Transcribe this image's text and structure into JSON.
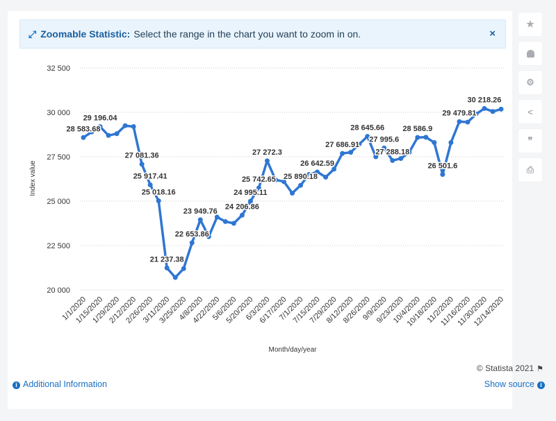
{
  "banner": {
    "icon": "expand-arrows-icon",
    "title": "Zoomable Statistic:",
    "text": "Select the range in the chart you want to zoom in on.",
    "close": "×"
  },
  "footer": {
    "copyright": "© Statista 2021",
    "additional_info": "Additional Information",
    "show_source": "Show source"
  },
  "sidebar": {
    "items": [
      {
        "name": "star-icon",
        "glyph": "★"
      },
      {
        "name": "bell-icon",
        "glyph": "🔔"
      },
      {
        "name": "gear-icon",
        "glyph": "⚙"
      },
      {
        "name": "share-icon",
        "glyph": "<"
      },
      {
        "name": "quote-icon",
        "glyph": "❞"
      },
      {
        "name": "print-icon",
        "glyph": "⎙"
      }
    ]
  },
  "colors": {
    "line": "#2f76d2",
    "grid": "#cccccc",
    "accent": "#1a6fc2"
  },
  "chart_data": {
    "type": "line",
    "xlabel": "Month/day/year",
    "ylabel": "Index value",
    "ylim": [
      20000,
      32500
    ],
    "yticks": [
      20000,
      22500,
      25000,
      27500,
      30000,
      32500
    ],
    "ytick_labels": [
      "20 000",
      "22 500",
      "25 000",
      "27 500",
      "30 000",
      "32 500"
    ],
    "grid": true,
    "categories": [
      "1/1/2020",
      "1/8/2020",
      "1/15/2020",
      "1/22/2020",
      "1/29/2020",
      "2/5/2020",
      "2/12/2020",
      "2/19/2020",
      "2/26/2020",
      "3/4/2020",
      "3/11/2020",
      "3/18/2020",
      "3/25/2020",
      "4/1/2020",
      "4/8/2020",
      "4/15/2020",
      "4/22/2020",
      "4/29/2020",
      "5/6/2020",
      "5/13/2020",
      "5/20/2020",
      "5/27/2020",
      "6/3/2020",
      "6/10/2020",
      "6/17/2020",
      "6/24/2020",
      "7/1/2020",
      "7/8/2020",
      "7/15/2020",
      "7/22/2020",
      "7/29/2020",
      "8/5/2020",
      "8/12/2020",
      "8/19/2020",
      "8/26/2020",
      "9/2/2020",
      "9/9/2020",
      "9/16/2020",
      "9/23/2020",
      "9/30/2020",
      "10/4/2020",
      "10/11/2020",
      "10/18/2020",
      "10/25/2020",
      "11/2/2020",
      "11/9/2020",
      "11/16/2020",
      "11/23/2020",
      "11/30/2020",
      "12/7/2020",
      "12/14/2020"
    ],
    "x_tick_labels": [
      "1/1/2020",
      "1/15/2020",
      "1/29/2020",
      "2/12/2020",
      "2/26/2020",
      "3/11/2020",
      "3/25/2020",
      "4/8/2020",
      "4/22/2020",
      "5/6/2020",
      "5/20/2020",
      "6/3/2020",
      "6/17/2020",
      "7/1/2020",
      "7/15/2020",
      "7/29/2020",
      "8/12/2020",
      "8/26/2020",
      "9/9/2020",
      "9/23/2020",
      "10/4/2020",
      "10/18/2020",
      "11/2/2020",
      "11/16/2020",
      "11/30/2020",
      "12/14/2020"
    ],
    "values": [
      28583.68,
      28900,
      29196.04,
      28700,
      28800,
      29250,
      29200,
      27081.36,
      25917.41,
      25018.16,
      21237.38,
      20700,
      21200,
      22653.86,
      23949.76,
      23000,
      24100,
      23850,
      23750,
      24206.86,
      24995.11,
      25742.65,
      27272.3,
      26200,
      26100,
      25450,
      25890.18,
      26500,
      26642.59,
      26350,
      26800,
      27686.91,
      27750,
      28200,
      28645.66,
      27500,
      27995.6,
      27288.18,
      27400,
      27750,
      28586.9,
      28600,
      28300,
      26501.6,
      28300,
      29479.81,
      29450,
      29900,
      30218.26,
      30050,
      30180
    ],
    "data_labels": [
      {
        "index": 0,
        "text": "28 583.68"
      },
      {
        "index": 2,
        "text": "29 196.04"
      },
      {
        "index": 7,
        "text": "27 081.36"
      },
      {
        "index": 8,
        "text": "25 917.41"
      },
      {
        "index": 9,
        "text": "25 018.16"
      },
      {
        "index": 10,
        "text": "21 237.38"
      },
      {
        "index": 13,
        "text": "22 653.86"
      },
      {
        "index": 14,
        "text": "23 949.76"
      },
      {
        "index": 19,
        "text": "24 206.86"
      },
      {
        "index": 20,
        "text": "24 995.11"
      },
      {
        "index": 21,
        "text": "25 742.65"
      },
      {
        "index": 22,
        "text": "27 272.3"
      },
      {
        "index": 26,
        "text": "25 890.18"
      },
      {
        "index": 28,
        "text": "26 642.59"
      },
      {
        "index": 31,
        "text": "27 686.91"
      },
      {
        "index": 34,
        "text": "28 645.66"
      },
      {
        "index": 36,
        "text": "27 995.6"
      },
      {
        "index": 37,
        "text": "27 288.18"
      },
      {
        "index": 40,
        "text": "28 586.9"
      },
      {
        "index": 43,
        "text": "26 501.6"
      },
      {
        "index": 45,
        "text": "29 479.81"
      },
      {
        "index": 48,
        "text": "30 218.26"
      }
    ]
  }
}
